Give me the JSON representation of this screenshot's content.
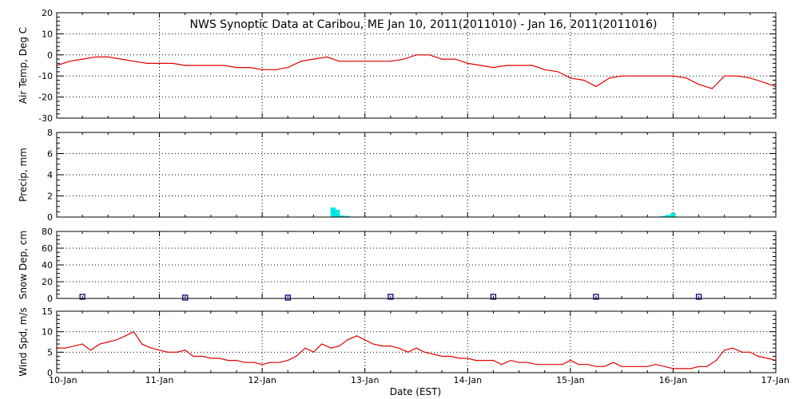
{
  "chart_data": {
    "type": "line",
    "title": "NWS Synoptic Data at Caribou, ME   Jan 10, 2011(2011010) - Jan 16, 2011(2011016)",
    "xlabel": "Date (EST)",
    "x_ticks": [
      "10-Jan",
      "11-Jan",
      "12-Jan",
      "13-Jan",
      "14-Jan",
      "15-Jan",
      "16-Jan",
      "17-Jan"
    ],
    "xlim_days": [
      0,
      7
    ],
    "grid": true,
    "panels": [
      {
        "id": "air-temp",
        "type": "line",
        "ylabel": "Air Temp, Deg C",
        "ylim": [
          -30,
          20
        ],
        "yticks": [
          -30,
          -20,
          -10,
          0,
          10,
          20
        ],
        "color": "#e00000",
        "x_days": [
          0.0,
          0.13,
          0.25,
          0.38,
          0.5,
          0.63,
          0.75,
          0.88,
          1.0,
          1.13,
          1.25,
          1.38,
          1.5,
          1.63,
          1.75,
          1.88,
          2.0,
          2.13,
          2.25,
          2.38,
          2.5,
          2.63,
          2.75,
          2.88,
          3.0,
          3.13,
          3.25,
          3.38,
          3.5,
          3.63,
          3.75,
          3.88,
          4.0,
          4.13,
          4.25,
          4.38,
          4.5,
          4.63,
          4.75,
          4.88,
          5.0,
          5.13,
          5.25,
          5.38,
          5.5,
          5.63,
          5.75,
          5.88,
          6.0,
          6.13,
          6.25,
          6.38,
          6.5,
          6.63,
          6.75,
          6.88,
          7.0
        ],
        "values": [
          -5,
          -3,
          -2,
          -1,
          -1,
          -2,
          -3,
          -4,
          -4,
          -4,
          -5,
          -5,
          -5,
          -5,
          -6,
          -6,
          -7,
          -7,
          -6,
          -3,
          -2,
          -1,
          -3,
          -3,
          -3,
          -3,
          -3,
          -2,
          0,
          0,
          -2,
          -2,
          -4,
          -5,
          -6,
          -5,
          -5,
          -5,
          -7,
          -8,
          -11,
          -12,
          -15,
          -11,
          -10,
          -10,
          -10,
          -10,
          -10,
          -11,
          -14,
          -16,
          -10,
          -10,
          -11,
          -13,
          -15
        ]
      },
      {
        "id": "precip",
        "type": "bar",
        "ylabel": "Precip, mm",
        "ylim": [
          0,
          8
        ],
        "yticks": [
          0,
          2,
          4,
          6,
          8
        ],
        "color": "#00e8e8",
        "x_days": [
          2.69,
          2.73,
          2.78,
          2.83,
          5.9,
          5.95,
          6.0
        ],
        "values": [
          0.9,
          0.7,
          0.15,
          0.1,
          0.1,
          0.2,
          0.4
        ]
      },
      {
        "id": "snow-depth",
        "type": "scatter",
        "ylabel": "Snow Dep, cm",
        "ylim": [
          0,
          80
        ],
        "yticks": [
          0,
          20,
          40,
          60,
          80
        ],
        "color": "#00008b",
        "x_days": [
          0.25,
          1.25,
          2.25,
          3.25,
          4.25,
          5.25,
          6.25
        ],
        "values": [
          2,
          1,
          1,
          2,
          2,
          2,
          2
        ]
      },
      {
        "id": "wind-speed",
        "type": "line",
        "ylabel": "Wind Spd, m/s",
        "ylim": [
          0,
          15
        ],
        "yticks": [
          0,
          5,
          10,
          15
        ],
        "color": "#e00000",
        "x_days": [
          0.0,
          0.08,
          0.17,
          0.25,
          0.33,
          0.42,
          0.5,
          0.58,
          0.67,
          0.75,
          0.83,
          0.92,
          1.0,
          1.08,
          1.17,
          1.25,
          1.33,
          1.42,
          1.5,
          1.58,
          1.67,
          1.75,
          1.83,
          1.92,
          2.0,
          2.08,
          2.17,
          2.25,
          2.33,
          2.42,
          2.5,
          2.58,
          2.67,
          2.75,
          2.83,
          2.92,
          3.0,
          3.08,
          3.17,
          3.25,
          3.33,
          3.42,
          3.5,
          3.58,
          3.67,
          3.75,
          3.83,
          3.92,
          4.0,
          4.08,
          4.17,
          4.25,
          4.33,
          4.42,
          4.5,
          4.58,
          4.67,
          4.75,
          4.83,
          4.92,
          5.0,
          5.08,
          5.17,
          5.25,
          5.33,
          5.42,
          5.5,
          5.58,
          5.67,
          5.75,
          5.83,
          5.92,
          6.0,
          6.08,
          6.17,
          6.25,
          6.33,
          6.42,
          6.5,
          6.58,
          6.67,
          6.75,
          6.83,
          6.92,
          7.0
        ],
        "values": [
          6,
          6,
          6.5,
          7,
          5.5,
          7,
          7.5,
          8,
          9,
          10,
          7,
          6,
          5.5,
          5,
          5,
          5.5,
          4,
          4,
          3.5,
          3.5,
          3,
          3,
          2.5,
          2.5,
          2,
          2.5,
          2.5,
          3,
          4,
          6,
          5,
          7,
          6,
          6.5,
          8,
          9,
          8,
          7,
          6.5,
          6.5,
          6,
          5,
          6,
          5,
          4.5,
          4,
          4,
          3.5,
          3.5,
          3,
          3,
          3,
          2,
          3,
          2.5,
          2.5,
          2,
          2,
          2,
          2,
          3,
          2,
          2,
          1.5,
          1.5,
          2.5,
          1.5,
          1.5,
          1.5,
          1.5,
          2,
          1.5,
          1,
          1,
          1,
          1.5,
          1.5,
          3,
          5.5,
          6,
          5,
          5,
          4,
          3.5,
          3
        ]
      }
    ]
  }
}
